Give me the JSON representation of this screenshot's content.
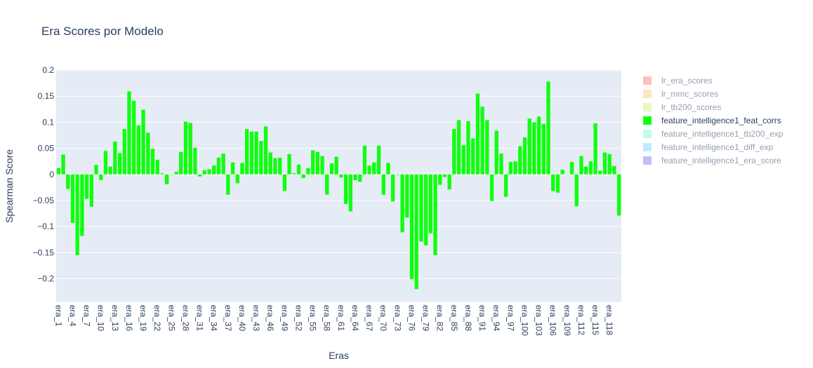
{
  "chart_data": {
    "type": "bar",
    "title": "Era Scores por Modelo",
    "xlabel": "Eras",
    "ylabel": "Spearman Score",
    "ylim": [
      -0.245,
      0.2
    ],
    "yticks": [
      0.2,
      0.15,
      0.1,
      0.05,
      0,
      -0.05,
      -0.1,
      -0.15,
      -0.2
    ],
    "ytick_labels": [
      "0.2",
      "0.15",
      "0.1",
      "0.05",
      "0",
      "−0.05",
      "−0.1",
      "−0.15",
      "−0.2"
    ],
    "xtick_labels": [
      "era_1",
      "era_4",
      "era_7",
      "era_10",
      "era_13",
      "era_16",
      "era_19",
      "era_22",
      "era_25",
      "era_28",
      "era_31",
      "era_34",
      "era_37",
      "era_40",
      "era_43",
      "era_46",
      "era_49",
      "era_52",
      "era_55",
      "era_58",
      "era_61",
      "era_64",
      "era_67",
      "era_70",
      "era_73",
      "era_76",
      "era_79",
      "era_82",
      "era_85",
      "era_88",
      "era_91",
      "era_94",
      "era_97",
      "era_100",
      "era_103",
      "era_106",
      "era_109",
      "era_112",
      "era_115",
      "era_118"
    ],
    "grid": true,
    "legend_position": "right",
    "colors": {
      "plot_bg": "#e5ecf6",
      "grid": "#ffffff",
      "text": "#2a3f5f"
    },
    "legend": [
      {
        "name": "lr_era_scores",
        "color": "#ff7f7f",
        "visible": false
      },
      {
        "name": "lr_mmc_scores",
        "color": "#ffcc80",
        "visible": false
      },
      {
        "name": "lr_tb200_scores",
        "color": "#d9f07a",
        "visible": false
      },
      {
        "name": "feature_intelligence1_feat_corrs",
        "color": "#0fff0f",
        "visible": true
      },
      {
        "name": "feature_intelligence1_tb200_exp",
        "color": "#7fffd4",
        "visible": false
      },
      {
        "name": "feature_intelligence1_diff_exp",
        "color": "#80d8ff",
        "visible": false
      },
      {
        "name": "feature_intelligence1_era_score",
        "color": "#8080ff",
        "visible": false
      }
    ],
    "series": [
      {
        "name": "feature_intelligence1_feat_corrs",
        "color": "#0fff0f",
        "values": [
          0.012,
          0.038,
          -0.028,
          -0.093,
          -0.155,
          -0.118,
          -0.047,
          -0.062,
          0.018,
          -0.011,
          0.045,
          0.015,
          0.063,
          0.041,
          0.087,
          0.159,
          0.141,
          0.094,
          0.124,
          0.08,
          0.049,
          0.028,
          0.002,
          -0.019,
          0.0,
          0.005,
          0.043,
          0.101,
          0.099,
          0.051,
          -0.004,
          0.008,
          0.01,
          0.017,
          0.032,
          0.04,
          -0.039,
          0.023,
          -0.017,
          0.022,
          0.087,
          0.082,
          0.082,
          0.064,
          0.092,
          0.042,
          0.031,
          0.032,
          -0.032,
          0.039,
          0.002,
          0.019,
          -0.007,
          0.012,
          0.046,
          0.043,
          0.035,
          -0.039,
          0.021,
          0.034,
          -0.006,
          -0.057,
          -0.071,
          -0.011,
          -0.014,
          0.055,
          0.017,
          0.023,
          0.055,
          -0.039,
          0.022,
          -0.052,
          -0.001,
          -0.111,
          -0.083,
          -0.201,
          -0.22,
          -0.129,
          -0.136,
          -0.113,
          -0.155,
          -0.02,
          -0.005,
          -0.029,
          0.087,
          0.104,
          0.056,
          0.102,
          0.069,
          0.155,
          0.13,
          0.104,
          -0.051,
          0.084,
          0.04,
          -0.043,
          0.024,
          0.025,
          0.054,
          0.071,
          0.107,
          0.1,
          0.111,
          0.097,
          0.178,
          -0.032,
          -0.035,
          0.009,
          0.0,
          0.024,
          -0.061,
          0.035,
          0.015,
          0.025,
          0.098,
          0.007,
          0.042,
          0.039,
          0.016,
          -0.079
        ]
      }
    ]
  }
}
